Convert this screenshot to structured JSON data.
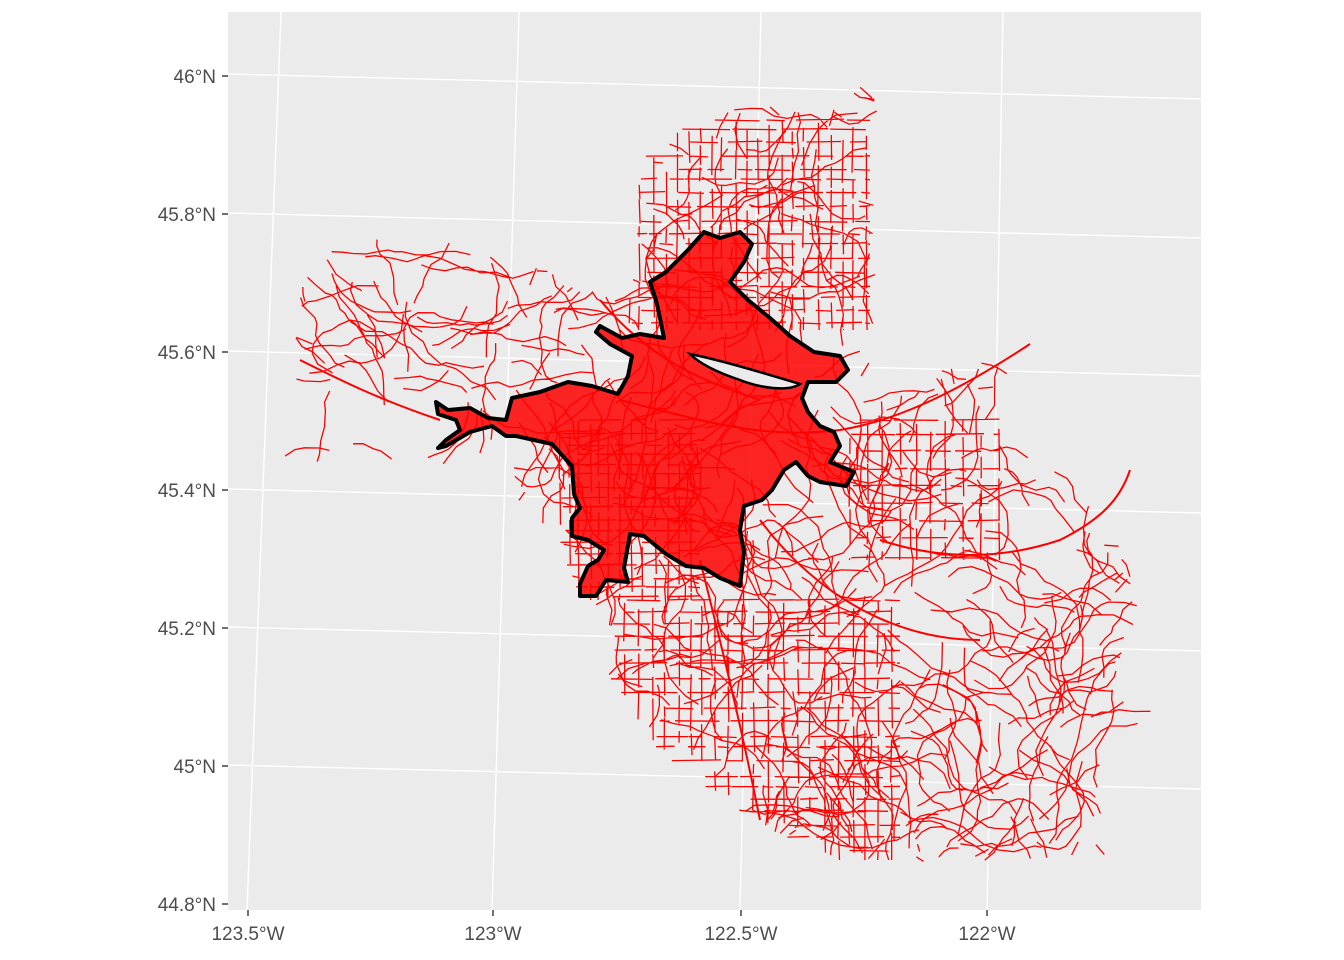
{
  "map": {
    "panel_background": "#ebebeb",
    "graticule_color": "#ffffff",
    "tick_color": "#333333",
    "roads_color": "#ff0000",
    "boundary_color": "#000000",
    "lat_ticks": [
      {
        "value": 46.0,
        "label": "46°N"
      },
      {
        "value": 45.8,
        "label": "45.8°N"
      },
      {
        "value": 45.6,
        "label": "45.6°N"
      },
      {
        "value": 45.4,
        "label": "45.4°N"
      },
      {
        "value": 45.2,
        "label": "45.2°N"
      },
      {
        "value": 45.0,
        "label": "45°N"
      },
      {
        "value": 44.8,
        "label": "44.8°N"
      }
    ],
    "lon_ticks": [
      {
        "value": -123.5,
        "label": "123.5°W"
      },
      {
        "value": -123.0,
        "label": "123°W"
      },
      {
        "value": -122.5,
        "label": "122.5°W"
      },
      {
        "value": -122.0,
        "label": "122°W"
      }
    ],
    "layers": [
      {
        "name": "road-network",
        "type": "lines",
        "color": "#ff0000"
      },
      {
        "name": "urban-growth-boundary",
        "type": "polygon-outline",
        "color": "#000000"
      }
    ]
  }
}
